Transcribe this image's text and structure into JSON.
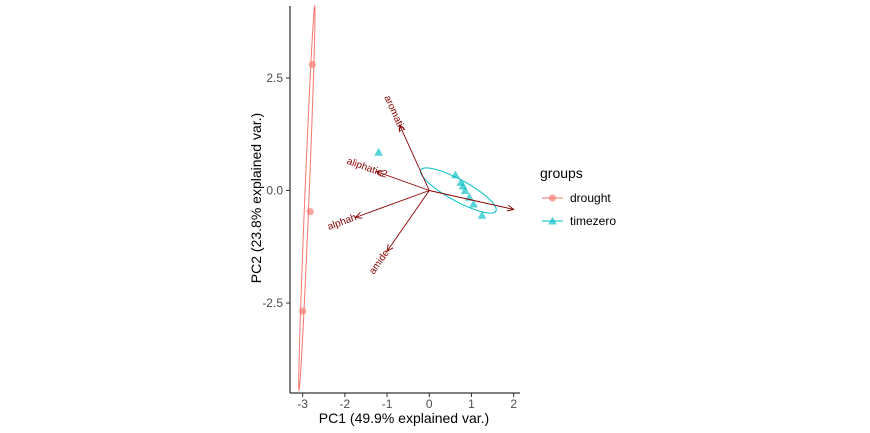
{
  "chart_data": {
    "type": "scatter",
    "xlabel": "PC1 (49.9% explained var.)",
    "ylabel": "PC2 (23.8% explained var.)",
    "xlim": [
      -3.3,
      2.15
    ],
    "ylim": [
      -4.5,
      4.1
    ],
    "x_ticks": [
      {
        "value": -3,
        "label": "-3"
      },
      {
        "value": -2,
        "label": "-2"
      },
      {
        "value": -1,
        "label": "-1"
      },
      {
        "value": 0,
        "label": "0"
      },
      {
        "value": 1,
        "label": "1"
      },
      {
        "value": 2,
        "label": "2"
      }
    ],
    "y_ticks": [
      {
        "value": 2.5,
        "label": "2.5"
      },
      {
        "value": 0,
        "label": "0.0"
      },
      {
        "value": -2.5,
        "label": "-2.5"
      }
    ],
    "grid": false,
    "legend": {
      "title": "groups",
      "placement": "right",
      "entries": [
        {
          "label": "drought",
          "color": "#F8766D",
          "shape": "circle"
        },
        {
          "label": "timezero",
          "color": "#00BFC4",
          "shape": "triangle"
        }
      ]
    },
    "series": [
      {
        "name": "drought",
        "color": "#F8766D",
        "marker": "circle",
        "points": [
          {
            "x": -2.77,
            "y": 2.8
          },
          {
            "x": -2.82,
            "y": -0.47
          },
          {
            "x": -3.0,
            "y": -2.68
          }
        ]
      },
      {
        "name": "timezero",
        "color": "#00BFC4",
        "marker": "triangle",
        "points": [
          {
            "x": -1.2,
            "y": 0.85
          },
          {
            "x": 0.62,
            "y": 0.35
          },
          {
            "x": 0.75,
            "y": 0.18
          },
          {
            "x": 0.8,
            "y": 0.1
          },
          {
            "x": 0.85,
            "y": 0.0
          },
          {
            "x": 0.95,
            "y": -0.15
          },
          {
            "x": 1.05,
            "y": -0.3
          },
          {
            "x": 1.25,
            "y": -0.55
          }
        ]
      }
    ],
    "ellipses": [
      {
        "group": "drought",
        "color": "#F8766D",
        "cx": -2.9,
        "cy": -0.17,
        "semi_major": 4.27,
        "semi_minor": 0.05,
        "angle_deg": 87.5
      },
      {
        "group": "timezero",
        "color": "#00BFC4",
        "cx": 0.69,
        "cy": 0.0,
        "semi_major": 1.0,
        "semi_minor": 0.24,
        "angle_deg": -27
      }
    ],
    "loadings": [
      {
        "name": "aromatic",
        "x": -0.7,
        "y": 1.45
      },
      {
        "name": "aliphatic2",
        "x": -1.25,
        "y": 0.42
      },
      {
        "name": "alphah",
        "x": -1.75,
        "y": -0.6
      },
      {
        "name": "amide",
        "x": -1.0,
        "y": -1.35
      },
      {
        "name": "",
        "x": 2.0,
        "y": -0.42
      }
    ]
  }
}
